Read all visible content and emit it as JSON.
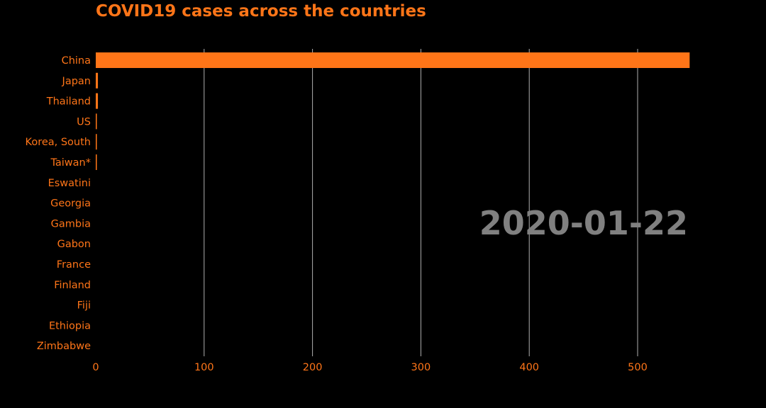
{
  "chart_data": {
    "type": "bar",
    "orientation": "horizontal",
    "title": "COVID19 cases across the countries",
    "date": "2020-01-22",
    "xlabel": "",
    "ylabel": "",
    "xlim": [
      0,
      600
    ],
    "xticks": [
      0,
      100,
      200,
      300,
      400,
      500
    ],
    "grid": "vertical",
    "categories": [
      "China",
      "Japan",
      "Thailand",
      "US",
      "Korea, South",
      "Taiwan*",
      "Eswatini",
      "Georgia",
      "Gambia",
      "Gabon",
      "France",
      "Finland",
      "Fiji",
      "Ethiopia",
      "Zimbabwe"
    ],
    "values": [
      548,
      2,
      2,
      1,
      1,
      1,
      0,
      0,
      0,
      0,
      0,
      0,
      0,
      0,
      0
    ],
    "colors": {
      "bar": "#ff7518",
      "text": "#ff7518",
      "grid": "#b0b0b0",
      "date": "#808080",
      "background": "#000000"
    }
  }
}
